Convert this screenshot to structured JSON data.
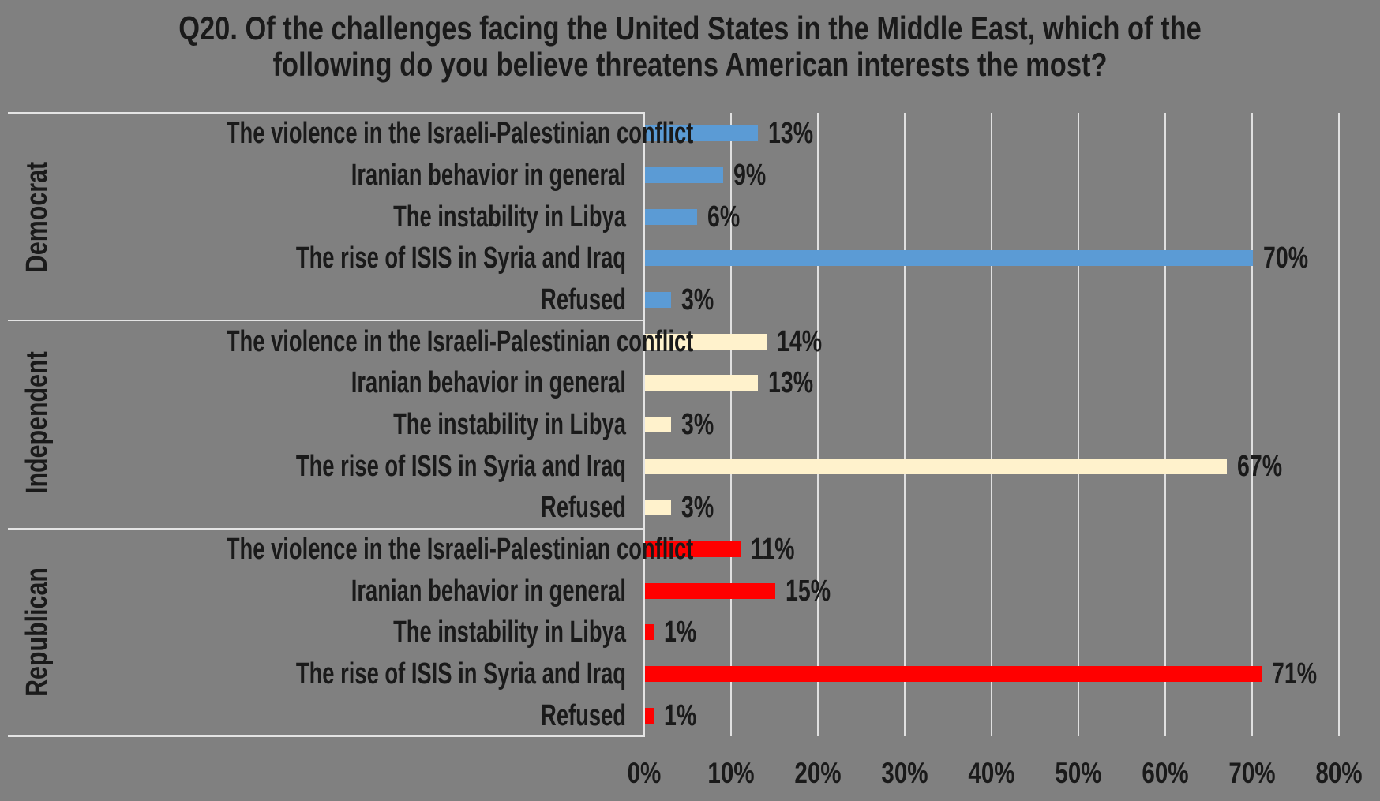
{
  "title": {
    "line1": "Q20. Of the challenges facing the United States in the Middle East, which of the",
    "line2": "following do you believe threatens American interests the most?"
  },
  "chart_data": {
    "type": "bar",
    "orientation": "horizontal",
    "title": "Q20. Of the challenges facing the United States in the Middle East, which of the following do you believe threatens American interests the most?",
    "categories": [
      "The violence in the Israeli-Palestinian conflict",
      "Iranian behavior in general",
      "The instability in Libya",
      "The rise of ISIS in Syria and Iraq",
      "Refused"
    ],
    "series": [
      {
        "name": "Democrat",
        "color": "#5B9BD5",
        "values": [
          13,
          9,
          6,
          70,
          3
        ]
      },
      {
        "name": "Independent",
        "color": "#FFF2CC",
        "values": [
          14,
          13,
          3,
          67,
          3
        ]
      },
      {
        "name": "Republican",
        "color": "#FF0000",
        "values": [
          11,
          15,
          1,
          71,
          1
        ]
      }
    ],
    "value_suffix": "%",
    "x_ticks": [
      "0%",
      "10%",
      "20%",
      "30%",
      "40%",
      "50%",
      "60%",
      "70%",
      "80%"
    ],
    "xlim": [
      0,
      80
    ],
    "grid": "vertical",
    "legend": "none",
    "colors": {
      "background": "#808080",
      "text": "#1A1A1A",
      "gridline": "#E0E0E0",
      "border": "#E4E4E4"
    }
  }
}
